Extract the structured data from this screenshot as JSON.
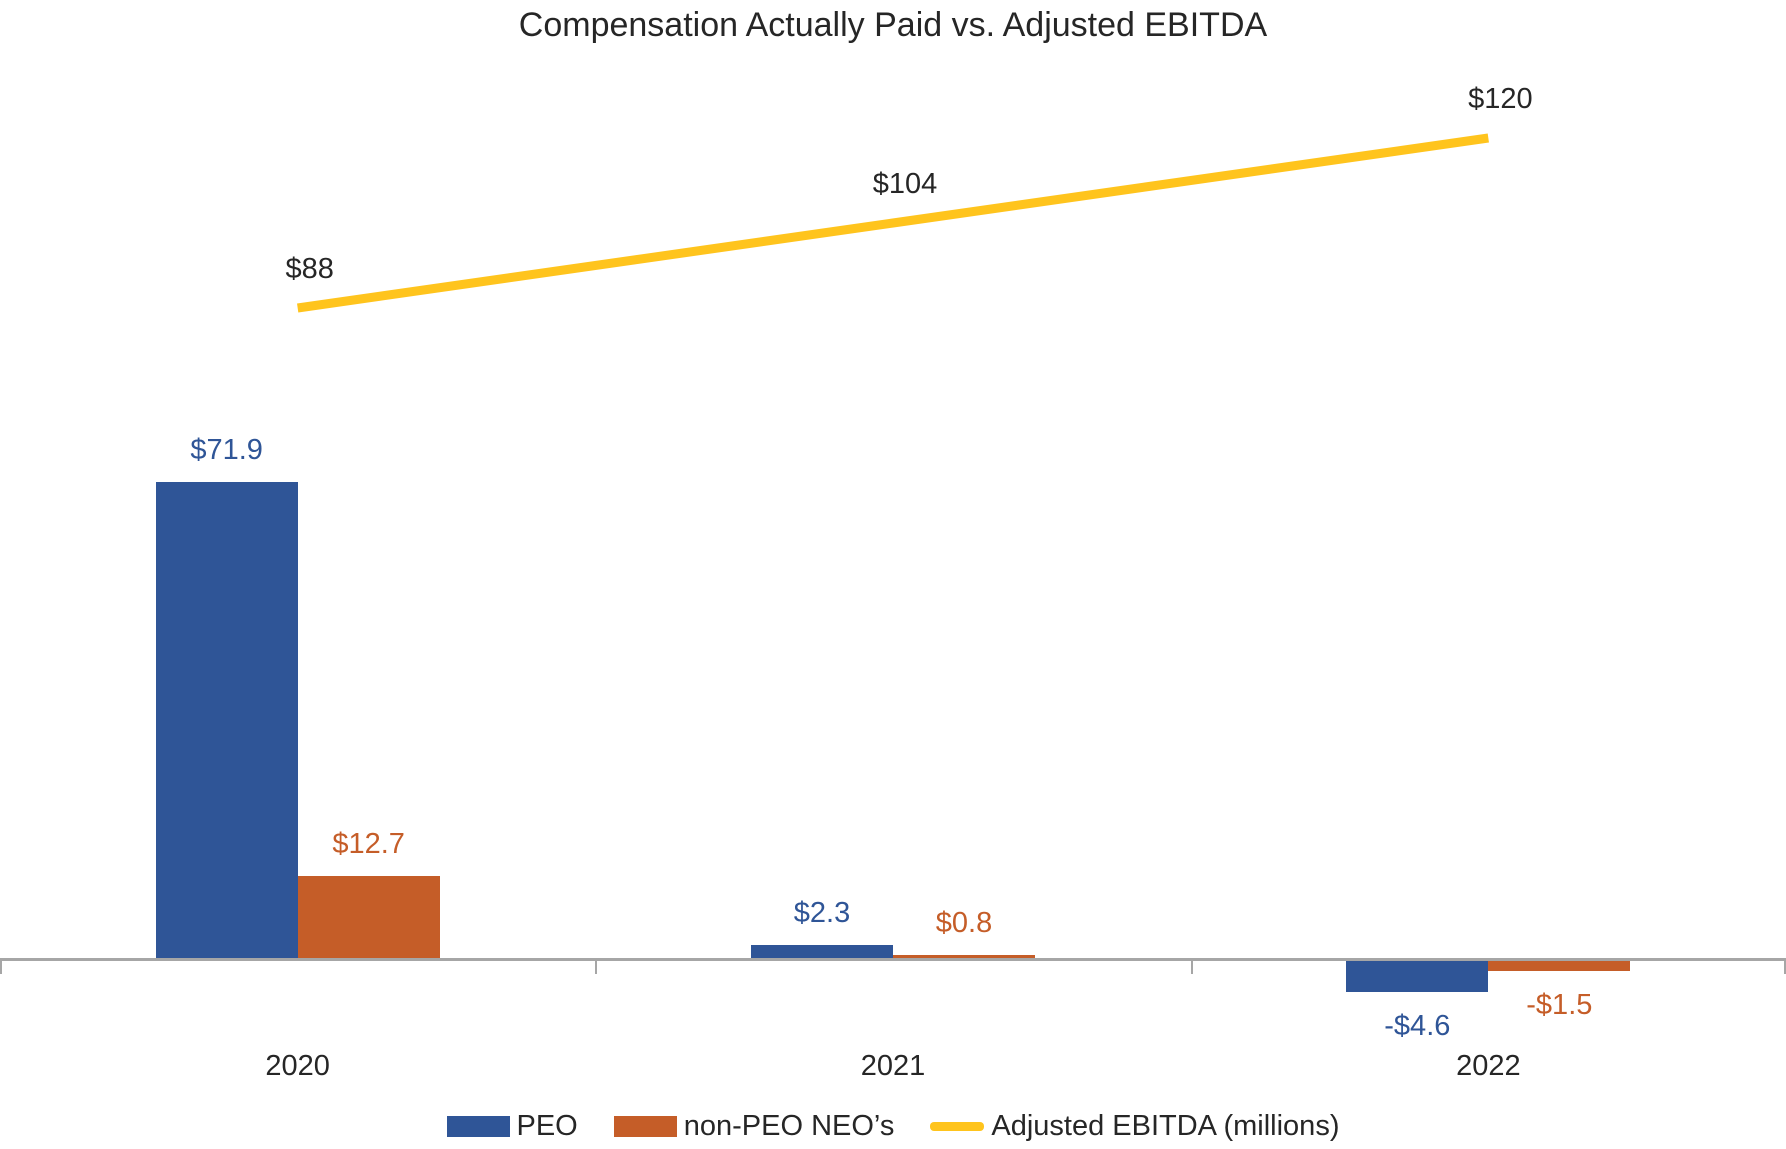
{
  "title": "Compensation Actually Paid vs. Adjusted EBITDA",
  "colors": {
    "peo_bar": "#2F5597",
    "non_peo_bar": "#C55D28",
    "ebitda_line": "#FFC41D",
    "axis": "#A6A6A6",
    "text": "#262626"
  },
  "chart_data": {
    "type": "combo-bar-line",
    "title": "Compensation Actually Paid vs. Adjusted EBITDA",
    "categories": [
      "2020",
      "2021",
      "2022"
    ],
    "series": [
      {
        "name": "PEO",
        "chart_type": "bar",
        "color": "#2F5597",
        "values": [
          71.9,
          2.3,
          -4.6
        ],
        "data_labels": [
          "$71.9",
          "$2.3",
          "-$4.6"
        ]
      },
      {
        "name": "non-PEO NEO’s",
        "chart_type": "bar",
        "color": "#C55D28",
        "values": [
          12.7,
          0.8,
          -1.5
        ],
        "data_labels": [
          "$12.7",
          "$0.8",
          "-$1.5"
        ]
      },
      {
        "name": "Adjusted EBITDA (millions)",
        "chart_type": "line",
        "color": "#FFC41D",
        "values": [
          88,
          104,
          120
        ],
        "data_labels": [
          "$88",
          "$104",
          "$120"
        ]
      }
    ],
    "xlabel": "",
    "ylabel": "",
    "y_axis_labels_visible": false,
    "gridlines": false,
    "legend_position": "bottom"
  }
}
